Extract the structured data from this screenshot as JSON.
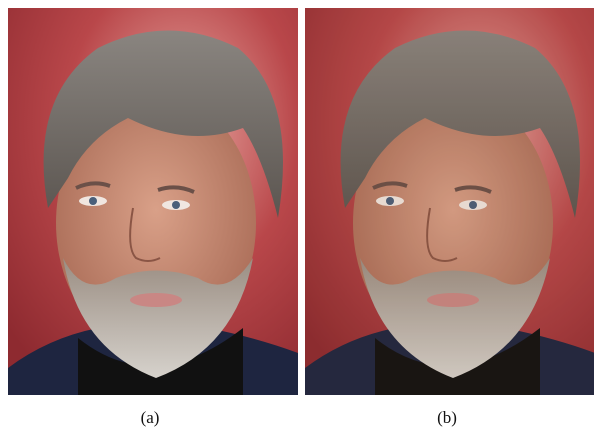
{
  "figures": [
    {
      "caption": "(a)"
    },
    {
      "caption": "(b)"
    }
  ]
}
